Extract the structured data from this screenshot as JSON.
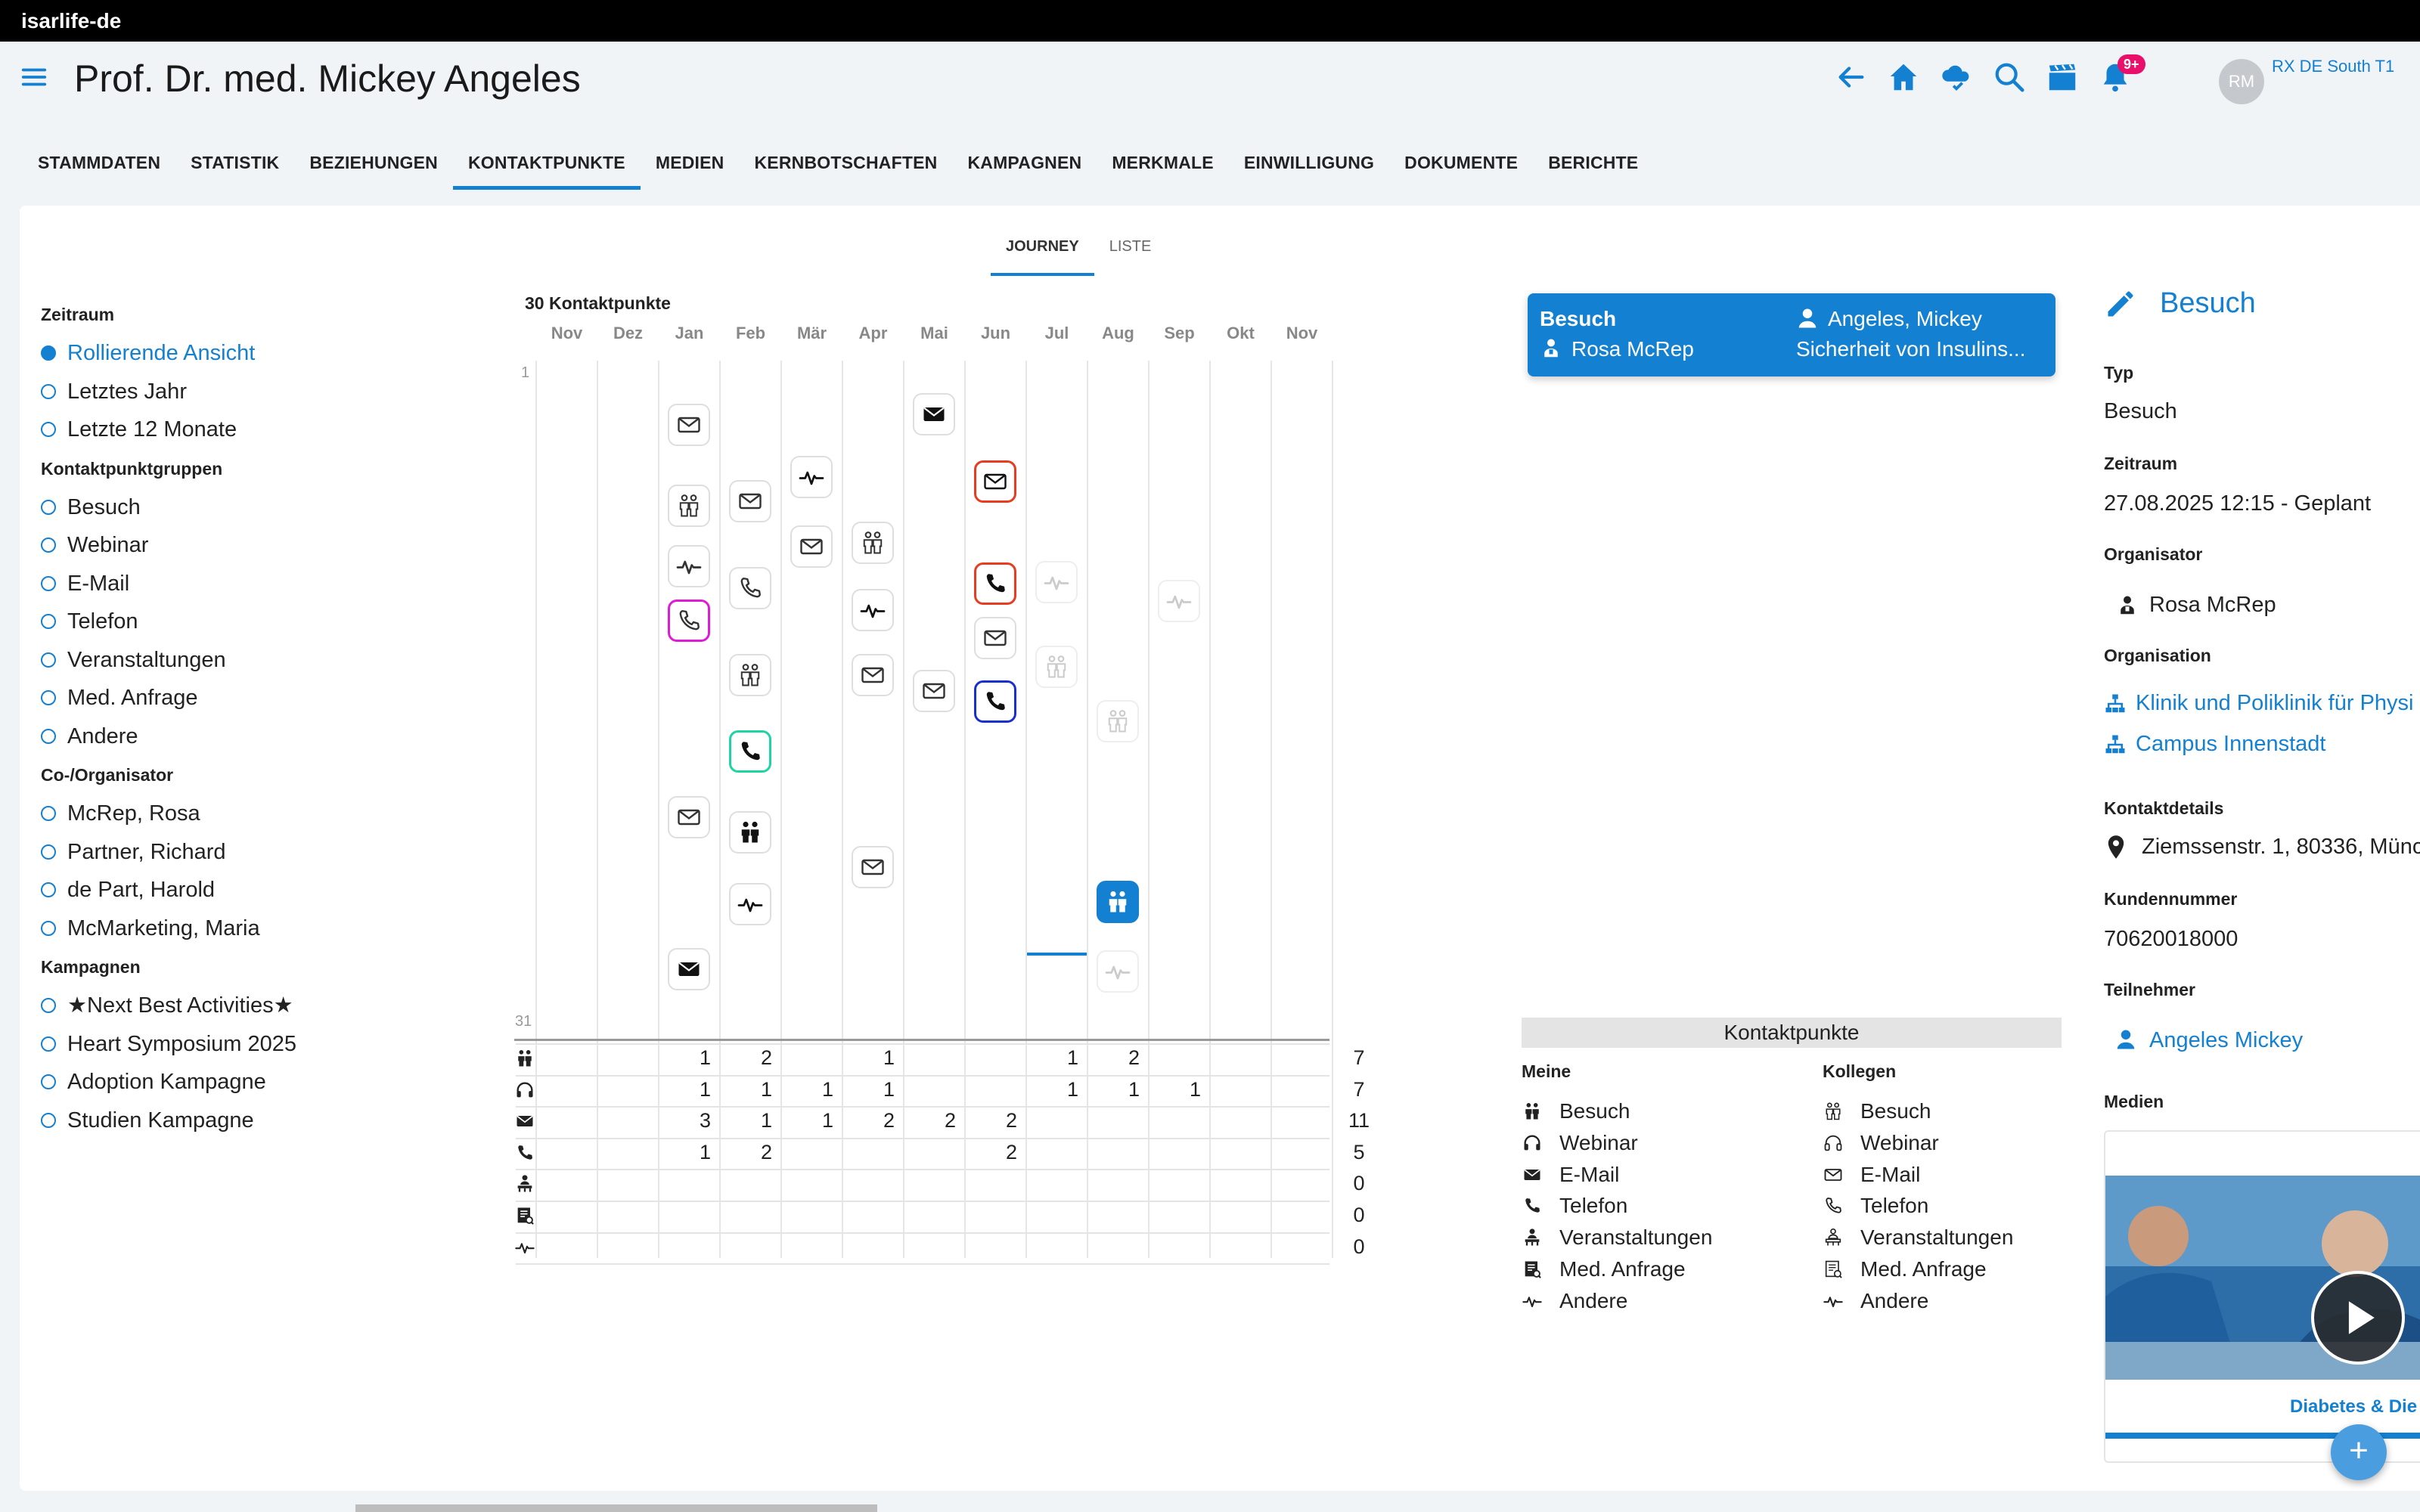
{
  "window": {
    "title": "isarlife-de"
  },
  "header": {
    "title": "Prof. Dr. med. Mickey Angeles",
    "notifications_badge": "9+",
    "avatar_initials": "RM",
    "user_label": "RX DE South T1"
  },
  "tabs": [
    "STAMMDATEN",
    "STATISTIK",
    "BEZIEHUNGEN",
    "KONTAKTPUNKTE",
    "MEDIEN",
    "KERNBOTSCHAFTEN",
    "KAMPAGNEN",
    "MERKMALE",
    "EINWILLIGUNG",
    "DOKUMENTE",
    "BERICHTE"
  ],
  "active_tab": "KONTAKTPUNKTE",
  "subtabs": [
    "JOURNEY",
    "LISTE"
  ],
  "active_subtab": "JOURNEY",
  "filters": {
    "zeitraum": {
      "title": "Zeitraum",
      "items": [
        "Rollierende Ansicht",
        "Letztes Jahr",
        "Letzte 12 Monate"
      ],
      "selected": "Rollierende Ansicht"
    },
    "gruppen": {
      "title": "Kontaktpunktgruppen",
      "items": [
        "Besuch",
        "Webinar",
        "E-Mail",
        "Telefon",
        "Veranstaltungen",
        "Med. Anfrage",
        "Andere"
      ]
    },
    "organisator": {
      "title": "Co-/Organisator",
      "items": [
        "McRep, Rosa",
        "Partner, Richard",
        "de Part, Harold",
        "McMarketing, Maria"
      ]
    },
    "kampagnen": {
      "title": "Kampagnen",
      "items": [
        "★Next Best Activities★",
        "Heart Symposium 2025",
        "Adoption Kampagne",
        "Studien Kampagne"
      ]
    }
  },
  "journey": {
    "count_label": "30 Kontaktpunkte",
    "months": [
      "Nov",
      "Dez",
      "Jan",
      "Feb",
      "Mär",
      "Apr",
      "Mai",
      "Jun",
      "Jul",
      "Aug",
      "Sep",
      "Okt",
      "Nov"
    ],
    "day_first": "1",
    "day_last": "31",
    "events": [
      {
        "month": 2,
        "day": 2.5,
        "type": "email",
        "style": "normal"
      },
      {
        "month": 2,
        "day": 6.2,
        "type": "besuch",
        "style": "normal"
      },
      {
        "month": 2,
        "day": 9,
        "type": "andere",
        "style": "normal"
      },
      {
        "month": 2,
        "day": 11.5,
        "type": "telefon",
        "style": "magenta"
      },
      {
        "month": 2,
        "day": 20.5,
        "type": "email",
        "style": "normal"
      },
      {
        "month": 2,
        "day": 27.5,
        "type": "email",
        "style": "dark"
      },
      {
        "month": 3,
        "day": 6,
        "type": "email",
        "style": "normal"
      },
      {
        "month": 3,
        "day": 10,
        "type": "telefon",
        "style": "normal"
      },
      {
        "month": 3,
        "day": 14,
        "type": "besuch",
        "style": "normal"
      },
      {
        "month": 3,
        "day": 17.5,
        "type": "telefon",
        "style": "teal"
      },
      {
        "month": 3,
        "day": 21.2,
        "type": "besuch",
        "style": "dark"
      },
      {
        "month": 3,
        "day": 24.5,
        "type": "andere",
        "style": "dark"
      },
      {
        "month": 4,
        "day": 4.9,
        "type": "andere",
        "style": "dark"
      },
      {
        "month": 4,
        "day": 8.1,
        "type": "email",
        "style": "normal"
      },
      {
        "month": 5,
        "day": 7.9,
        "type": "besuch",
        "style": "normal"
      },
      {
        "month": 5,
        "day": 11,
        "type": "andere",
        "style": "dark"
      },
      {
        "month": 5,
        "day": 14,
        "type": "email",
        "style": "normal"
      },
      {
        "month": 5,
        "day": 22.8,
        "type": "email",
        "style": "normal"
      },
      {
        "month": 6,
        "day": 2,
        "type": "email",
        "style": "dark"
      },
      {
        "month": 6,
        "day": 14.7,
        "type": "email",
        "style": "normal"
      },
      {
        "month": 7,
        "day": 5.1,
        "type": "email",
        "style": "red"
      },
      {
        "month": 7,
        "day": 9.8,
        "type": "telefon",
        "style": "red"
      },
      {
        "month": 7,
        "day": 12.3,
        "type": "email",
        "style": "normal"
      },
      {
        "month": 7,
        "day": 15.2,
        "type": "telefon",
        "style": "navy"
      },
      {
        "month": 8,
        "day": 9.7,
        "type": "andere",
        "style": "faded"
      },
      {
        "month": 8,
        "day": 13.6,
        "type": "besuch",
        "style": "faded"
      },
      {
        "month": 9,
        "day": 16.1,
        "type": "besuch",
        "style": "faded"
      },
      {
        "month": 9,
        "day": 24.4,
        "type": "besuch",
        "style": "fill"
      },
      {
        "month": 9,
        "day": 27.6,
        "type": "andere",
        "style": "faded"
      },
      {
        "month": 10,
        "day": 10.6,
        "type": "andere",
        "style": "faded"
      }
    ],
    "selection_marker": {
      "month": 8,
      "day": 26.8
    }
  },
  "stats": {
    "rows": [
      {
        "type": "besuch",
        "counts": {
          "2": "1",
          "3": "2",
          "5": "1",
          "8": "1",
          "9": "2"
        },
        "total": "7"
      },
      {
        "type": "webinar",
        "counts": {
          "2": "1",
          "3": "1",
          "4": "1",
          "5": "1",
          "8": "1",
          "9": "1",
          "10": "1"
        },
        "total": "7"
      },
      {
        "type": "email",
        "counts": {
          "2": "3",
          "3": "1",
          "4": "1",
          "5": "2",
          "6": "2",
          "7": "2"
        },
        "total": "11"
      },
      {
        "type": "telefon",
        "counts": {
          "2": "1",
          "3": "2",
          "7": "2"
        },
        "total": "5"
      },
      {
        "type": "veranstaltungen",
        "counts": {},
        "total": "0"
      },
      {
        "type": "anfrage",
        "counts": {},
        "total": "0"
      },
      {
        "type": "andere",
        "counts": {},
        "total": "0"
      }
    ]
  },
  "selected_event": {
    "type": "Besuch",
    "organizer": "Rosa McRep",
    "participant": "Angeles, Mickey",
    "topic": "Sicherheit von Insulins..."
  },
  "legend": {
    "title": "Kontaktpunkte",
    "meine_title": "Meine",
    "kollegen_title": "Kollegen",
    "items": [
      "Besuch",
      "Webinar",
      "E-Mail",
      "Telefon",
      "Veranstaltungen",
      "Med. Anfrage",
      "Andere"
    ]
  },
  "detail": {
    "title": "Besuch",
    "typ_label": "Typ",
    "typ": "Besuch",
    "zeitraum_label": "Zeitraum",
    "zeitraum": "27.08.2025 12:15  - Geplant",
    "organisator_label": "Organisator",
    "organisator": "Rosa McRep",
    "organisation_label": "Organisation",
    "organisation_1": "Klinik und Poliklinik für Physi",
    "organisation_2": "Campus Innenstadt",
    "kontakt_label": "Kontaktdetails",
    "adresse": "Ziemssenstr. 1, 80336, Münc",
    "kundennummer_label": "Kundennummer",
    "kundennummer": "70620018000",
    "teilnehmer_label": "Teilnehmer",
    "teilnehmer": "Angeles Mickey",
    "medien_label": "Medien",
    "media_caption": "Diabetes & Die"
  },
  "colors": {
    "accent": "#1480d2",
    "magenta": "#e01bd4",
    "red": "#e83b1f",
    "teal": "#1fd3a4",
    "navy": "#1a2fd0",
    "badge": "#e8106b"
  }
}
